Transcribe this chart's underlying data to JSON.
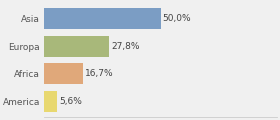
{
  "categories": [
    "Asia",
    "Europa",
    "Africa",
    "America"
  ],
  "values": [
    50.0,
    27.8,
    16.7,
    5.6
  ],
  "labels": [
    "50,0%",
    "27,8%",
    "16,7%",
    "5,6%"
  ],
  "bar_colors": [
    "#7b9dc4",
    "#a8b87a",
    "#e0a87a",
    "#e8d870"
  ],
  "background_color": "#f0f0f0",
  "xlim": [
    0,
    100
  ],
  "label_fontsize": 6.5,
  "tick_fontsize": 6.5,
  "bar_height": 0.75
}
